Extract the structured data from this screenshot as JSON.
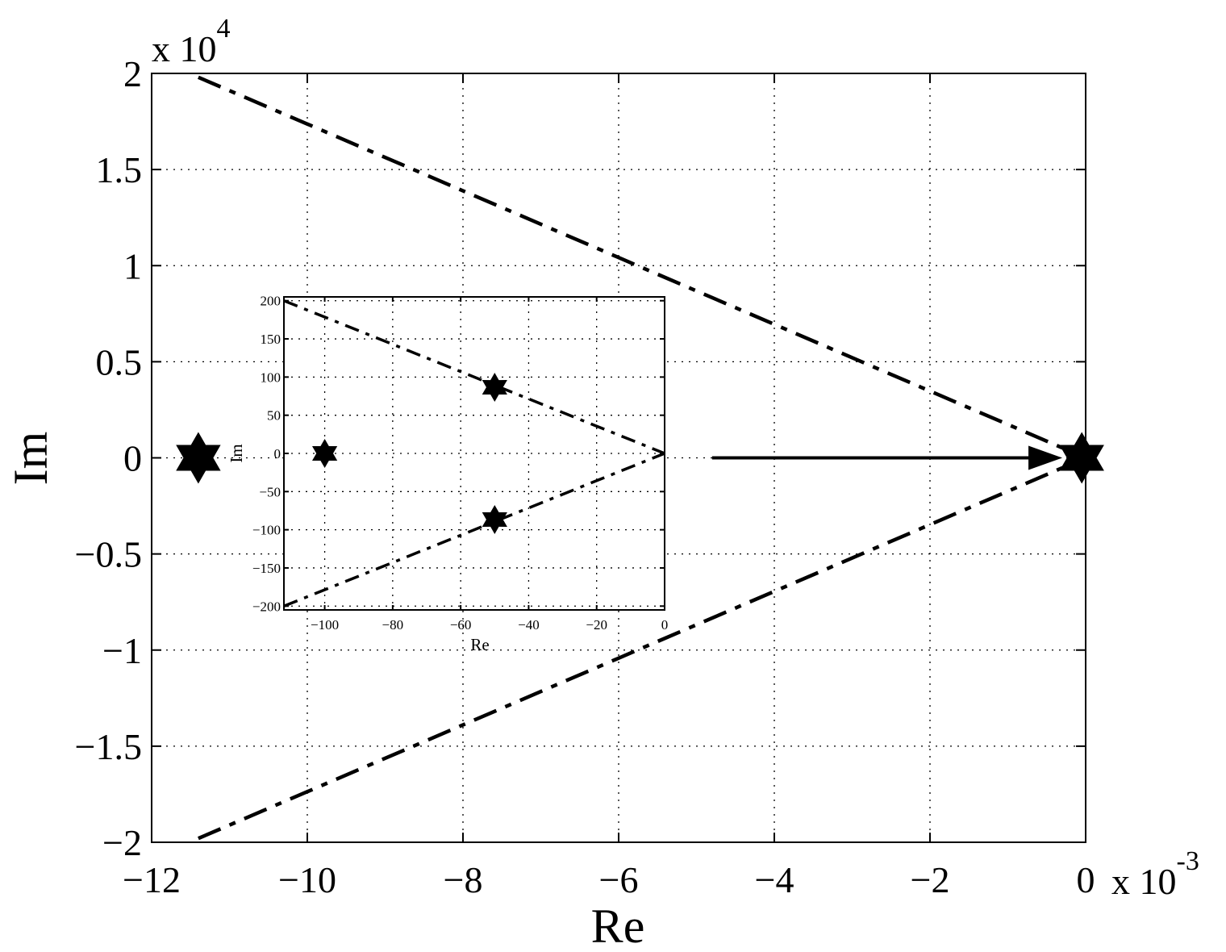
{
  "chart_data": [
    {
      "type": "line",
      "xlabel": "Re",
      "ylabel": "Im",
      "x_exponent": "x 10",
      "x_exponent_power": "-3",
      "y_exponent": "x 10",
      "y_exponent_power": "4",
      "xlim": [
        -12,
        0
      ],
      "ylim": [
        -2,
        2
      ],
      "x_ticks": [
        -12,
        -10,
        -8,
        -6,
        -4,
        -2,
        0
      ],
      "x_tick_labels": [
        "−12",
        "−10",
        "−8",
        "−6",
        "−4",
        "−2",
        "0"
      ],
      "y_ticks": [
        -2,
        -1.5,
        -1,
        -0.5,
        0,
        0.5,
        1,
        1.5,
        2
      ],
      "y_tick_labels": [
        "−2",
        "−1.5",
        "−1",
        "−0.5",
        "0",
        "0.5",
        "1",
        "1.5",
        "2"
      ],
      "grid": true,
      "series": [
        {
          "style": "dashed",
          "x": [
            -11.4,
            0
          ],
          "y": [
            1.98,
            0
          ]
        },
        {
          "style": "dashed",
          "x": [
            -11.4,
            0
          ],
          "y": [
            -1.98,
            0
          ]
        }
      ],
      "markers": [
        {
          "shape": "hexagram",
          "x": -11.4,
          "y": 0
        },
        {
          "shape": "hexagram",
          "x": -0.05,
          "y": 0
        }
      ],
      "arrow": {
        "x_start": -4.8,
        "x_end": -0.3,
        "y": 0
      }
    },
    {
      "type": "line",
      "inset": true,
      "xlabel": "Re",
      "ylabel": "Im",
      "xlim": [
        -112,
        0
      ],
      "ylim": [
        -205,
        205
      ],
      "x_ticks": [
        -100,
        -80,
        -60,
        -40,
        -20,
        0
      ],
      "x_tick_labels": [
        "−100",
        "−80",
        "−60",
        "−40",
        "−20",
        "0"
      ],
      "y_ticks": [
        -200,
        -150,
        -100,
        -50,
        0,
        50,
        100,
        150,
        200
      ],
      "y_tick_labels": [
        "−200",
        "−150",
        "−100",
        "−50",
        "0",
        "50",
        "100",
        "150",
        "200"
      ],
      "grid": true,
      "series": [
        {
          "style": "dashed",
          "x": [
            -112,
            0
          ],
          "y": [
            200,
            0
          ]
        },
        {
          "style": "dashed",
          "x": [
            -112,
            0
          ],
          "y": [
            -200,
            0
          ]
        }
      ],
      "markers": [
        {
          "shape": "hexagram",
          "x": -100,
          "y": 0
        },
        {
          "shape": "hexagram",
          "x": -50,
          "y": 86.6
        },
        {
          "shape": "hexagram",
          "x": -50,
          "y": -86.6
        }
      ]
    }
  ]
}
